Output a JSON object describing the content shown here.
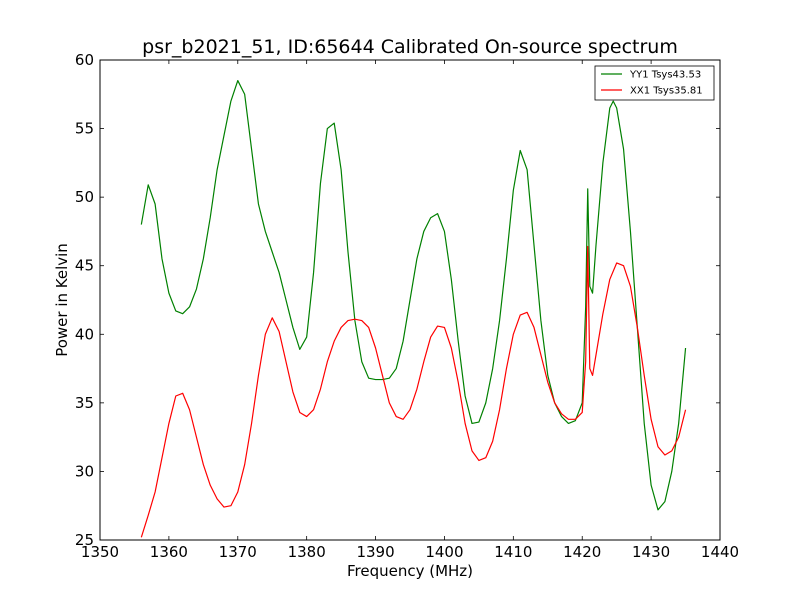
{
  "chart_data": {
    "type": "line",
    "title": "psr_b2021_51, ID:65644 Calibrated On-source spectrum",
    "xlabel": "Frequency (MHz)",
    "ylabel": "Power in Kelvin",
    "xlim": [
      1350,
      1440
    ],
    "ylim": [
      25,
      60
    ],
    "xticks": [
      "1350",
      "1360",
      "1370",
      "1380",
      "1390",
      "1400",
      "1410",
      "1420",
      "1430",
      "1440"
    ],
    "yticks": [
      "25",
      "30",
      "35",
      "40",
      "45",
      "50",
      "55",
      "60"
    ],
    "grid": false,
    "legend_position": "top-right",
    "series": [
      {
        "name": "YY1 Tsys43.53",
        "color": "#008000",
        "points": [
          [
            1356.0,
            48.0
          ],
          [
            1357.0,
            50.9
          ],
          [
            1358.0,
            49.5
          ],
          [
            1359.0,
            45.5
          ],
          [
            1360.0,
            43.0
          ],
          [
            1361.0,
            41.7
          ],
          [
            1362.0,
            41.5
          ],
          [
            1363.0,
            42.0
          ],
          [
            1364.0,
            43.3
          ],
          [
            1365.0,
            45.5
          ],
          [
            1366.0,
            48.5
          ],
          [
            1367.0,
            52.0
          ],
          [
            1368.0,
            54.5
          ],
          [
            1369.0,
            57.0
          ],
          [
            1370.0,
            58.5
          ],
          [
            1371.0,
            57.5
          ],
          [
            1372.0,
            53.5
          ],
          [
            1373.0,
            49.5
          ],
          [
            1374.0,
            47.5
          ],
          [
            1375.0,
            46.0
          ],
          [
            1376.0,
            44.5
          ],
          [
            1377.0,
            42.5
          ],
          [
            1378.0,
            40.5
          ],
          [
            1379.0,
            38.9
          ],
          [
            1380.0,
            39.8
          ],
          [
            1381.0,
            44.5
          ],
          [
            1382.0,
            51.0
          ],
          [
            1383.0,
            55.0
          ],
          [
            1384.0,
            55.4
          ],
          [
            1385.0,
            52.0
          ],
          [
            1386.0,
            46.0
          ],
          [
            1387.0,
            41.0
          ],
          [
            1388.0,
            38.0
          ],
          [
            1389.0,
            36.8
          ],
          [
            1390.0,
            36.7
          ],
          [
            1391.0,
            36.7
          ],
          [
            1392.0,
            36.8
          ],
          [
            1393.0,
            37.5
          ],
          [
            1394.0,
            39.5
          ],
          [
            1395.0,
            42.5
          ],
          [
            1396.0,
            45.5
          ],
          [
            1397.0,
            47.5
          ],
          [
            1398.0,
            48.5
          ],
          [
            1399.0,
            48.8
          ],
          [
            1400.0,
            47.5
          ],
          [
            1401.0,
            44.0
          ],
          [
            1402.0,
            39.5
          ],
          [
            1403.0,
            35.5
          ],
          [
            1404.0,
            33.5
          ],
          [
            1405.0,
            33.6
          ],
          [
            1406.0,
            35.0
          ],
          [
            1407.0,
            37.5
          ],
          [
            1408.0,
            41.0
          ],
          [
            1409.0,
            45.5
          ],
          [
            1410.0,
            50.5
          ],
          [
            1411.0,
            53.4
          ],
          [
            1412.0,
            52.0
          ],
          [
            1413.0,
            46.5
          ],
          [
            1414.0,
            41.0
          ],
          [
            1415.0,
            37.0
          ],
          [
            1416.0,
            35.0
          ],
          [
            1417.0,
            34.0
          ],
          [
            1418.0,
            33.5
          ],
          [
            1419.0,
            33.7
          ],
          [
            1420.0,
            35.0
          ],
          [
            1420.5,
            42.0
          ],
          [
            1420.8,
            50.6
          ],
          [
            1421.1,
            43.5
          ],
          [
            1421.5,
            43.0
          ],
          [
            1422.0,
            46.5
          ],
          [
            1423.0,
            52.5
          ],
          [
            1424.0,
            56.5
          ],
          [
            1424.5,
            57.0
          ],
          [
            1425.0,
            56.5
          ],
          [
            1426.0,
            53.5
          ],
          [
            1427.0,
            47.5
          ],
          [
            1428.0,
            40.5
          ],
          [
            1429.0,
            33.5
          ],
          [
            1430.0,
            29.0
          ],
          [
            1431.0,
            27.2
          ],
          [
            1432.0,
            27.8
          ],
          [
            1433.0,
            30.0
          ],
          [
            1434.0,
            33.5
          ],
          [
            1435.0,
            39.0
          ]
        ]
      },
      {
        "name": "XX1 Tsys35.81",
        "color": "#ff0000",
        "points": [
          [
            1356.0,
            25.2
          ],
          [
            1357.0,
            26.8
          ],
          [
            1358.0,
            28.5
          ],
          [
            1359.0,
            31.0
          ],
          [
            1360.0,
            33.5
          ],
          [
            1361.0,
            35.5
          ],
          [
            1362.0,
            35.7
          ],
          [
            1363.0,
            34.5
          ],
          [
            1364.0,
            32.5
          ],
          [
            1365.0,
            30.5
          ],
          [
            1366.0,
            29.0
          ],
          [
            1367.0,
            28.0
          ],
          [
            1368.0,
            27.4
          ],
          [
            1369.0,
            27.5
          ],
          [
            1370.0,
            28.5
          ],
          [
            1371.0,
            30.5
          ],
          [
            1372.0,
            33.5
          ],
          [
            1373.0,
            37.0
          ],
          [
            1374.0,
            40.0
          ],
          [
            1375.0,
            41.2
          ],
          [
            1376.0,
            40.2
          ],
          [
            1377.0,
            38.0
          ],
          [
            1378.0,
            35.8
          ],
          [
            1379.0,
            34.3
          ],
          [
            1380.0,
            34.0
          ],
          [
            1381.0,
            34.5
          ],
          [
            1382.0,
            36.0
          ],
          [
            1383.0,
            38.0
          ],
          [
            1384.0,
            39.5
          ],
          [
            1385.0,
            40.5
          ],
          [
            1386.0,
            41.0
          ],
          [
            1387.0,
            41.1
          ],
          [
            1388.0,
            41.0
          ],
          [
            1389.0,
            40.5
          ],
          [
            1390.0,
            39.0
          ],
          [
            1391.0,
            37.0
          ],
          [
            1392.0,
            35.0
          ],
          [
            1393.0,
            34.0
          ],
          [
            1394.0,
            33.8
          ],
          [
            1395.0,
            34.5
          ],
          [
            1396.0,
            36.0
          ],
          [
            1397.0,
            38.0
          ],
          [
            1398.0,
            39.8
          ],
          [
            1399.0,
            40.6
          ],
          [
            1400.0,
            40.5
          ],
          [
            1401.0,
            39.0
          ],
          [
            1402.0,
            36.5
          ],
          [
            1403.0,
            33.5
          ],
          [
            1404.0,
            31.5
          ],
          [
            1405.0,
            30.8
          ],
          [
            1406.0,
            31.0
          ],
          [
            1407.0,
            32.2
          ],
          [
            1408.0,
            34.5
          ],
          [
            1409.0,
            37.5
          ],
          [
            1410.0,
            40.0
          ],
          [
            1411.0,
            41.4
          ],
          [
            1412.0,
            41.6
          ],
          [
            1413.0,
            40.5
          ],
          [
            1414.0,
            38.5
          ],
          [
            1415.0,
            36.5
          ],
          [
            1416.0,
            35.0
          ],
          [
            1417.0,
            34.2
          ],
          [
            1418.0,
            33.8
          ],
          [
            1419.0,
            33.8
          ],
          [
            1420.0,
            34.3
          ],
          [
            1420.5,
            38.0
          ],
          [
            1420.8,
            46.4
          ],
          [
            1421.1,
            37.5
          ],
          [
            1421.5,
            37.0
          ],
          [
            1422.0,
            38.5
          ],
          [
            1423.0,
            41.5
          ],
          [
            1424.0,
            44.0
          ],
          [
            1425.0,
            45.2
          ],
          [
            1426.0,
            45.0
          ],
          [
            1427.0,
            43.5
          ],
          [
            1428.0,
            40.5
          ],
          [
            1429.0,
            37.0
          ],
          [
            1430.0,
            33.8
          ],
          [
            1431.0,
            31.8
          ],
          [
            1432.0,
            31.2
          ],
          [
            1433.0,
            31.5
          ],
          [
            1434.0,
            32.5
          ],
          [
            1435.0,
            34.5
          ]
        ]
      }
    ]
  }
}
